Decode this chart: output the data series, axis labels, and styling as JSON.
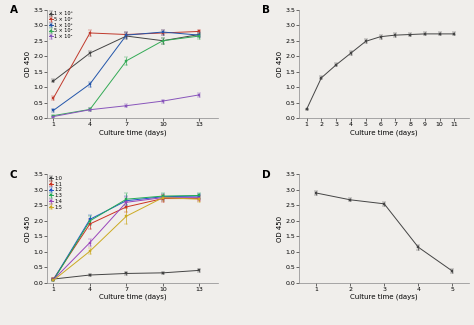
{
  "bg_color": "#f0eeeb",
  "panel_A": {
    "label": "A",
    "xlabel": "Culture time (days)",
    "ylabel": "OD 450",
    "xlim": [
      0.5,
      14.5
    ],
    "ylim": [
      0,
      3.5
    ],
    "xticks": [
      1,
      4,
      7,
      10,
      13
    ],
    "yticks": [
      0,
      0.5,
      1.0,
      1.5,
      2.0,
      2.5,
      3.0,
      3.5
    ],
    "series": [
      {
        "label": "1 × 10⁶",
        "color": "#444444",
        "x": [
          1,
          4,
          7,
          10,
          13
        ],
        "y": [
          1.2,
          2.1,
          2.65,
          2.5,
          2.7
        ],
        "yerr": [
          0.05,
          0.08,
          0.1,
          0.1,
          0.08
        ]
      },
      {
        "label": "5 × 10⁵",
        "color": "#c0392b",
        "x": [
          1,
          4,
          7,
          10,
          13
        ],
        "y": [
          0.65,
          2.75,
          2.7,
          2.75,
          2.8
        ],
        "yerr": [
          0.05,
          0.1,
          0.08,
          0.08,
          0.05
        ]
      },
      {
        "label": "1 × 10⁵",
        "color": "#2255aa",
        "x": [
          1,
          4,
          7,
          10,
          13
        ],
        "y": [
          0.25,
          1.1,
          2.68,
          2.78,
          2.68
        ],
        "yerr": [
          0.05,
          0.08,
          0.1,
          0.08,
          0.06
        ]
      },
      {
        "label": "5 × 10⁴",
        "color": "#33aa55",
        "x": [
          1,
          4,
          7,
          10,
          13
        ],
        "y": [
          0.08,
          0.28,
          1.85,
          2.5,
          2.65
        ],
        "yerr": [
          0.03,
          0.05,
          0.12,
          0.1,
          0.08
        ]
      },
      {
        "label": "1 × 10⁴",
        "color": "#8855bb",
        "x": [
          1,
          4,
          7,
          10,
          13
        ],
        "y": [
          0.05,
          0.27,
          0.4,
          0.55,
          0.75
        ],
        "yerr": [
          0.02,
          0.04,
          0.05,
          0.05,
          0.06
        ]
      }
    ]
  },
  "panel_B": {
    "label": "B",
    "xlabel": "Culture time (days)",
    "ylabel": "OD 450",
    "xlim": [
      0.5,
      12
    ],
    "ylim": [
      0,
      3.5
    ],
    "xticks": [
      1,
      2,
      3,
      4,
      5,
      6,
      7,
      8,
      9,
      10,
      11
    ],
    "yticks": [
      0,
      0.5,
      1.0,
      1.5,
      2.0,
      2.5,
      3.0,
      3.5
    ],
    "series": [
      {
        "label": "",
        "color": "#444444",
        "x": [
          1,
          2,
          3,
          4,
          5,
          6,
          7,
          8,
          9,
          10,
          11
        ],
        "y": [
          0.28,
          1.3,
          1.72,
          2.1,
          2.48,
          2.63,
          2.68,
          2.7,
          2.72,
          2.72,
          2.72
        ],
        "yerr": [
          0.02,
          0.05,
          0.05,
          0.06,
          0.07,
          0.06,
          0.06,
          0.05,
          0.05,
          0.05,
          0.05
        ]
      }
    ]
  },
  "panel_C": {
    "label": "C",
    "xlabel": "Culture time (days)",
    "ylabel": "OD 450",
    "xlim": [
      0.5,
      14.5
    ],
    "ylim": [
      0,
      3.5
    ],
    "xticks": [
      1,
      4,
      7,
      10,
      13
    ],
    "yticks": [
      0,
      0.5,
      1.0,
      1.5,
      2.0,
      2.5,
      3.0,
      3.5
    ],
    "series": [
      {
        "label": "1:0",
        "color": "#444444",
        "x": [
          1,
          4,
          7,
          10,
          13
        ],
        "y": [
          0.12,
          0.25,
          0.3,
          0.32,
          0.4
        ],
        "yerr": [
          0.02,
          0.03,
          0.04,
          0.04,
          0.05
        ]
      },
      {
        "label": "1:1",
        "color": "#cc3322",
        "x": [
          1,
          4,
          7,
          10,
          13
        ],
        "y": [
          0.12,
          1.9,
          2.45,
          2.72,
          2.72
        ],
        "yerr": [
          0.02,
          0.15,
          0.15,
          0.1,
          0.08
        ]
      },
      {
        "label": "1:2",
        "color": "#2255cc",
        "x": [
          1,
          4,
          7,
          10,
          13
        ],
        "y": [
          0.1,
          2.05,
          2.65,
          2.78,
          2.8
        ],
        "yerr": [
          0.02,
          0.15,
          0.15,
          0.1,
          0.08
        ]
      },
      {
        "label": "1:3",
        "color": "#22aa55",
        "x": [
          1,
          4,
          7,
          10,
          13
        ],
        "y": [
          0.08,
          2.0,
          2.7,
          2.8,
          2.82
        ],
        "yerr": [
          0.02,
          0.15,
          0.2,
          0.1,
          0.08
        ]
      },
      {
        "label": "1:4",
        "color": "#9944bb",
        "x": [
          1,
          4,
          7,
          10,
          13
        ],
        "y": [
          0.1,
          1.3,
          2.6,
          2.75,
          2.75
        ],
        "yerr": [
          0.02,
          0.12,
          0.18,
          0.1,
          0.08
        ]
      },
      {
        "label": "1:5",
        "color": "#ccaa22",
        "x": [
          1,
          4,
          7,
          10,
          13
        ],
        "y": [
          0.08,
          1.02,
          2.15,
          2.75,
          2.7
        ],
        "yerr": [
          0.02,
          0.1,
          0.25,
          0.1,
          0.08
        ]
      }
    ]
  },
  "panel_D": {
    "label": "D",
    "xlabel": "Culture time (days)",
    "ylabel": "OD 450",
    "xlim": [
      0.5,
      5.5
    ],
    "ylim": [
      0,
      3.5
    ],
    "xticks": [
      1,
      2,
      3,
      4,
      5
    ],
    "yticks": [
      0,
      0.5,
      1.0,
      1.5,
      2.0,
      2.5,
      3.0,
      3.5
    ],
    "series": [
      {
        "label": "",
        "color": "#444444",
        "x": [
          1,
          2,
          3,
          4,
          5
        ],
        "y": [
          2.9,
          2.68,
          2.55,
          1.15,
          0.38
        ],
        "yerr": [
          0.05,
          0.05,
          0.06,
          0.08,
          0.05
        ]
      }
    ]
  }
}
